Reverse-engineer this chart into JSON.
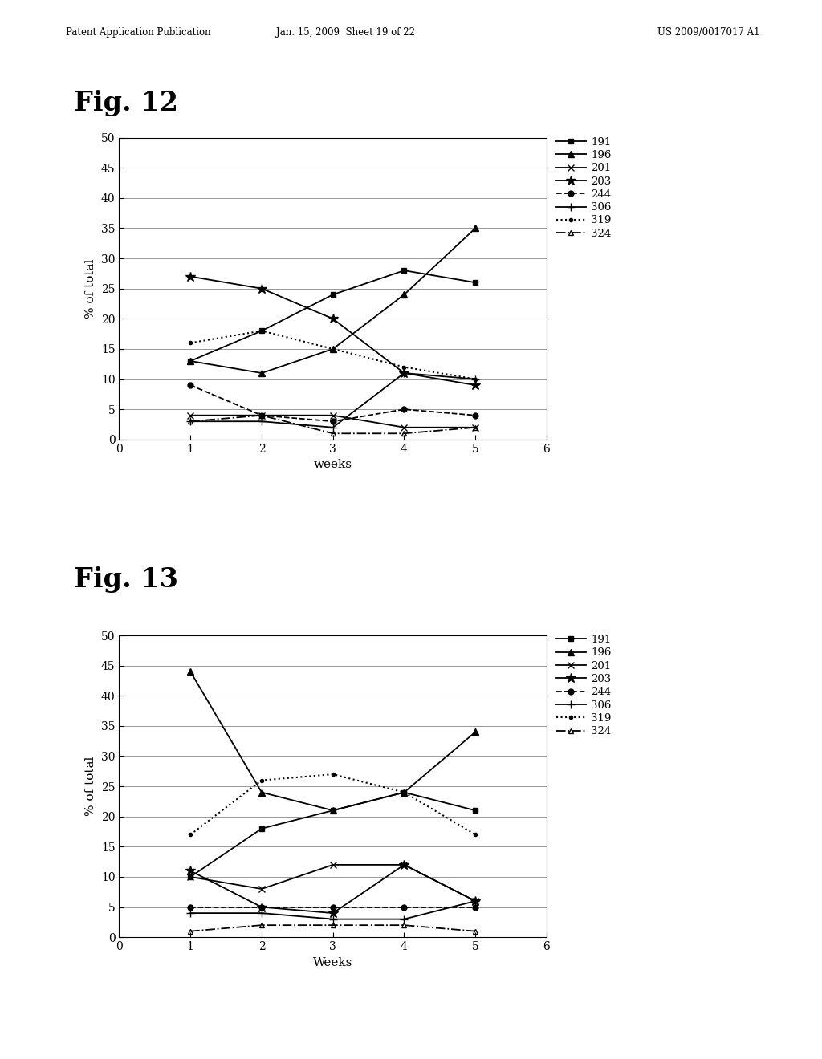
{
  "fig12": {
    "xlabel": "weeks",
    "ylabel": "% of total",
    "xlim": [
      0,
      6
    ],
    "ylim": [
      0,
      50
    ],
    "yticks": [
      0,
      5,
      10,
      15,
      20,
      25,
      30,
      35,
      40,
      45,
      50
    ],
    "xticks": [
      0,
      1,
      2,
      3,
      4,
      5,
      6
    ],
    "series": {
      "191": {
        "x": [
          1,
          2,
          3,
          4,
          5
        ],
        "y": [
          13,
          18,
          24,
          28,
          26
        ]
      },
      "196": {
        "x": [
          1,
          2,
          3,
          4,
          5
        ],
        "y": [
          13,
          11,
          15,
          24,
          35
        ]
      },
      "201": {
        "x": [
          1,
          2,
          3,
          4,
          5
        ],
        "y": [
          4,
          4,
          4,
          2,
          2
        ]
      },
      "203": {
        "x": [
          1,
          2,
          3,
          4,
          5
        ],
        "y": [
          27,
          25,
          20,
          11,
          9
        ]
      },
      "244": {
        "x": [
          1,
          2,
          3,
          4,
          5
        ],
        "y": [
          9,
          4,
          3,
          5,
          4
        ]
      },
      "306": {
        "x": [
          1,
          2,
          3,
          4,
          5
        ],
        "y": [
          3,
          3,
          2,
          11,
          10
        ]
      },
      "319": {
        "x": [
          1,
          2,
          3,
          4,
          5
        ],
        "y": [
          16,
          18,
          15,
          12,
          10
        ]
      },
      "324": {
        "x": [
          1,
          2,
          3,
          4,
          5
        ],
        "y": [
          3,
          4,
          1,
          1,
          2
        ]
      }
    }
  },
  "fig13": {
    "xlabel": "Weeks",
    "ylabel": "% of total",
    "xlim": [
      0,
      6
    ],
    "ylim": [
      0,
      50
    ],
    "yticks": [
      0,
      5,
      10,
      15,
      20,
      25,
      30,
      35,
      40,
      45,
      50
    ],
    "xticks": [
      0,
      1,
      2,
      3,
      4,
      5,
      6
    ],
    "series": {
      "191": {
        "x": [
          1,
          2,
          3,
          4,
          5
        ],
        "y": [
          10,
          18,
          21,
          24,
          21
        ]
      },
      "196": {
        "x": [
          1,
          2,
          3,
          4,
          5
        ],
        "y": [
          44,
          24,
          21,
          24,
          34
        ]
      },
      "201": {
        "x": [
          1,
          2,
          3,
          4,
          5
        ],
        "y": [
          10,
          8,
          12,
          12,
          6
        ]
      },
      "203": {
        "x": [
          1,
          2,
          3,
          4,
          5
        ],
        "y": [
          11,
          5,
          4,
          12,
          6
        ]
      },
      "244": {
        "x": [
          1,
          2,
          3,
          4,
          5
        ],
        "y": [
          5,
          5,
          5,
          5,
          5
        ]
      },
      "306": {
        "x": [
          1,
          2,
          3,
          4,
          5
        ],
        "y": [
          4,
          4,
          3,
          3,
          6
        ]
      },
      "319": {
        "x": [
          1,
          2,
          3,
          4,
          5
        ],
        "y": [
          17,
          26,
          27,
          24,
          17
        ]
      },
      "324": {
        "x": [
          1,
          2,
          3,
          4,
          5
        ],
        "y": [
          1,
          2,
          2,
          2,
          1
        ]
      }
    }
  },
  "header_left": "Patent Application Publication",
  "header_mid": "Jan. 15, 2009  Sheet 19 of 22",
  "header_right": "US 2009/0017017 A1",
  "fig12_label": "Fig. 12",
  "fig13_label": "Fig. 13",
  "background_color": "#ffffff"
}
